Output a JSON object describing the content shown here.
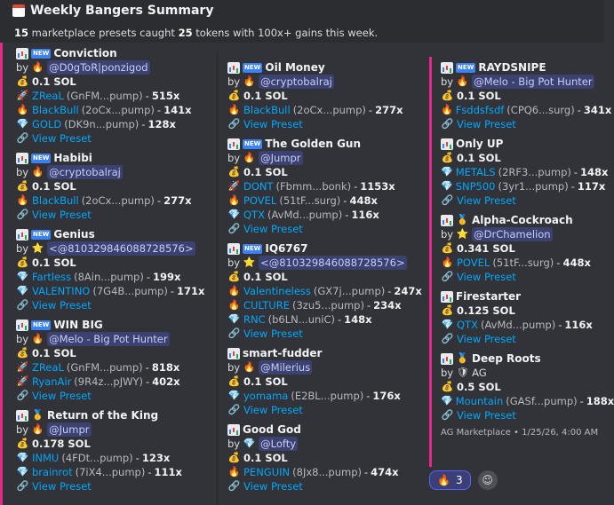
{
  "header": {
    "title": "Weekly Bangers Summary",
    "summary_count": "15",
    "summary_mid": "marketplace presets caught",
    "summary_tokens": "25",
    "summary_end": "tokens with 100x+ gains this week."
  },
  "columns": [
    [
      {
        "name": "Conviction",
        "new": true,
        "medal": false,
        "by_icon": "fire",
        "by": "@D0gToR|ponzigod",
        "sol": "0.1 SOL",
        "tokens": [
          {
            "icon": "rocket",
            "name": "ZReaL",
            "addr": "(GnFM...pump)",
            "mult": "515x"
          },
          {
            "icon": "fire",
            "name": "BlackBull",
            "addr": "(2oCx...pump)",
            "mult": "141x"
          },
          {
            "icon": "gem",
            "name": "GOLD",
            "addr": "(DK9n...pump)",
            "mult": "128x"
          }
        ]
      },
      {
        "name": "Habibi",
        "new": true,
        "medal": false,
        "by_icon": "fire",
        "by": "@cryptobalraj",
        "sol": "0.1 SOL",
        "tokens": [
          {
            "icon": "fire",
            "name": "BlackBull",
            "addr": "(2oCx...pump)",
            "mult": "277x"
          }
        ]
      },
      {
        "name": "Genius",
        "new": true,
        "medal": false,
        "by_icon": "star",
        "by": "<@810329846088728576>",
        "sol": "0.1 SOL",
        "tokens": [
          {
            "icon": "gem",
            "name": "Fartless",
            "addr": "(8Ain...pump)",
            "mult": "199x"
          },
          {
            "icon": "gem",
            "name": "VALENTINO",
            "addr": "(7G4B...pump)",
            "mult": "171x"
          }
        ]
      },
      {
        "name": "WIN BIG",
        "new": true,
        "medal": false,
        "by_icon": "fire",
        "by": "@Melo - Big Pot Hunter",
        "sol": "0.1 SOL",
        "tokens": [
          {
            "icon": "rocket",
            "name": "ZReaL",
            "addr": "(GnFM...pump)",
            "mult": "818x"
          },
          {
            "icon": "rocket",
            "name": "RyanAir",
            "addr": "(9R4z...pJWY)",
            "mult": "402x"
          }
        ]
      },
      {
        "name": "Return of the King",
        "new": false,
        "medal": true,
        "by_icon": "fire",
        "by": "@Jumpr",
        "sol": "0.178 SOL",
        "tokens": [
          {
            "icon": "gem",
            "name": "INMU",
            "addr": "(4FDt...pump)",
            "mult": "123x"
          },
          {
            "icon": "gem",
            "name": "brainrot",
            "addr": "(7iX4...pump)",
            "mult": "111x"
          }
        ]
      }
    ],
    [
      {
        "name": "Oil Money",
        "new": true,
        "medal": false,
        "by_icon": "fire",
        "by": "@cryptobalraj",
        "sol": "0.1 SOL",
        "tokens": [
          {
            "icon": "fire",
            "name": "BlackBull",
            "addr": "(2oCx...pump)",
            "mult": "277x"
          }
        ]
      },
      {
        "name": "The Golden Gun",
        "new": true,
        "medal": false,
        "by_icon": "fire",
        "by": "@Jumpr",
        "sol": "0.1 SOL",
        "tokens": [
          {
            "icon": "rocket",
            "name": "DONT",
            "addr": "(Fbmm...bonk)",
            "mult": "1153x"
          },
          {
            "icon": "fire",
            "name": "POVEL",
            "addr": "(51tF...surg)",
            "mult": "448x"
          },
          {
            "icon": "gem",
            "name": "QTX",
            "addr": "(AvMd...pump)",
            "mult": "116x"
          }
        ]
      },
      {
        "name": "IQ6767",
        "new": true,
        "medal": false,
        "by_icon": "star",
        "by": "<@810329846088728576>",
        "sol": "0.1 SOL",
        "tokens": [
          {
            "icon": "fire",
            "name": "Valentineless",
            "addr": "(GX7j...pump)",
            "mult": "247x"
          },
          {
            "icon": "fire",
            "name": "CULTURE",
            "addr": "(3zu5...pump)",
            "mult": "234x"
          },
          {
            "icon": "gem",
            "name": "RNC",
            "addr": "(b6LN...uniC)",
            "mult": "148x"
          }
        ]
      },
      {
        "name": "smart-fudder",
        "new": false,
        "medal": false,
        "by_icon": "fire",
        "by": "@Milerius",
        "sol": "0.1 SOL",
        "tokens": [
          {
            "icon": "gem",
            "name": "yomama",
            "addr": "(E2BL...pump)",
            "mult": "176x"
          }
        ]
      },
      {
        "name": "Good God",
        "new": false,
        "medal": false,
        "by_icon": "gem",
        "by": "@Lofty",
        "sol": "0.1 SOL",
        "tokens": [
          {
            "icon": "fire",
            "name": "PENGUIN",
            "addr": "(8Jx8...pump)",
            "mult": "474x"
          }
        ]
      }
    ],
    [
      {
        "name": "RAYDSNIPE",
        "new": true,
        "medal": false,
        "by_icon": "fire",
        "by": "@Melo - Big Pot Hunter",
        "sol": "0.1 SOL",
        "tokens": [
          {
            "icon": "fire",
            "name": "Fsddsfsdf",
            "addr": "(CPQ6...surg)",
            "mult": "341x"
          }
        ]
      },
      {
        "name": "Only UP",
        "new": false,
        "medal": false,
        "by_icon": "",
        "by": "",
        "sol": "0.1 SOL",
        "tokens": [
          {
            "icon": "gem",
            "name": "METALS",
            "addr": "(2RF3...pump)",
            "mult": "148x"
          },
          {
            "icon": "gem",
            "name": "SNP500",
            "addr": "(3yr1...pump)",
            "mult": "117x"
          }
        ]
      },
      {
        "name": "Alpha-Cockroach",
        "new": false,
        "medal": true,
        "by_icon": "star",
        "by": "@DrChamelion",
        "sol": "0.341 SOL",
        "tokens": [
          {
            "icon": "fire",
            "name": "POVEL",
            "addr": "(51tF...surg)",
            "mult": "448x"
          }
        ]
      },
      {
        "name": "Firestarter",
        "new": false,
        "medal": false,
        "by_icon": "",
        "by": "",
        "sol": "0.125 SOL",
        "tokens": [
          {
            "icon": "gem",
            "name": "QTX",
            "addr": "(AvMd...pump)",
            "mult": "116x"
          }
        ]
      },
      {
        "name": "Deep Roots",
        "new": false,
        "medal": true,
        "by_icon": "shield",
        "by": "AG",
        "sol": "0.5 SOL",
        "tokens": [
          {
            "icon": "gem",
            "name": "Mountain",
            "addr": "(GASf...pump)",
            "mult": "188x"
          }
        ]
      }
    ]
  ],
  "labels": {
    "by": "by",
    "view": "View Preset",
    "new": "NEW",
    "sep": " - "
  },
  "footer": "AG Marketplace • 1/25/26, 4:00 AM",
  "reaction": {
    "emoji": "🔥",
    "count": "3"
  },
  "colors": {
    "accent_bar": "#e7288b",
    "link": "#00a8fc",
    "mention_bg": "#3c4270"
  }
}
